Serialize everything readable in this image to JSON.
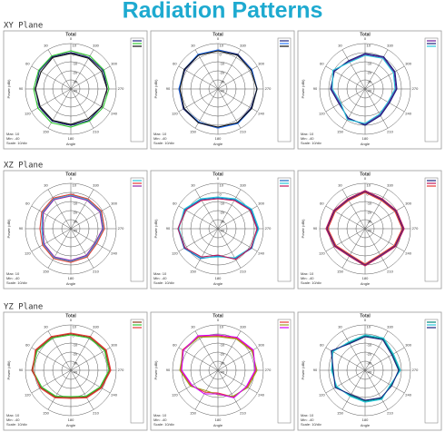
{
  "title": "Radiation Patterns",
  "sections": [
    "XY Plane",
    "XZ Plane",
    "YZ Plane"
  ],
  "chart_data": [
    {
      "type": "polar",
      "title": "Total",
      "r_label": "Power (dBi)",
      "x_label": "Angle",
      "notes": [
        "Max: 10",
        "Min: -40",
        "Scale: 10/div"
      ],
      "rlim": [
        -40,
        10
      ],
      "rticks": [
        -40,
        -30,
        -20,
        -10,
        0,
        10
      ],
      "x": [
        0,
        30,
        60,
        90,
        120,
        150,
        180,
        210,
        240,
        270,
        300,
        330
      ],
      "xticks": [
        0,
        30,
        60,
        90,
        120,
        150,
        180,
        210,
        240,
        270,
        300,
        330
      ],
      "series": [
        {
          "color": "#1a237e",
          "values": [
            0,
            1,
            0,
            -1,
            0,
            1,
            0,
            0,
            -1,
            0,
            1,
            0
          ]
        },
        {
          "color": "#33cc33",
          "values": [
            2,
            2,
            1,
            1,
            2,
            3,
            2,
            1,
            1,
            2,
            2,
            2
          ]
        },
        {
          "color": "#111111",
          "values": [
            -1,
            0,
            -2,
            -1,
            -1,
            0,
            -1,
            -2,
            -1,
            0,
            -1,
            -1
          ]
        }
      ]
    },
    {
      "type": "polar",
      "title": "Total",
      "r_label": "Power (dBi)",
      "x_label": "Angle",
      "notes": [
        "Max: 10",
        "Min: -40",
        "Scale: 10/div"
      ],
      "rlim": [
        -40,
        10
      ],
      "rticks": [
        -40,
        -30,
        -20,
        -10,
        0,
        10
      ],
      "x": [
        0,
        30,
        60,
        90,
        120,
        150,
        180,
        210,
        240,
        270,
        300,
        330
      ],
      "xticks": [
        0,
        30,
        60,
        90,
        120,
        150,
        180,
        210,
        240,
        270,
        300,
        330
      ],
      "series": [
        {
          "color": "#1a237e",
          "values": [
            3,
            3,
            2,
            3,
            4,
            3,
            3,
            3,
            2,
            3,
            3,
            4
          ]
        },
        {
          "color": "#2979ff",
          "values": [
            3,
            4,
            3,
            3,
            3,
            2,
            3,
            4,
            3,
            3,
            3,
            3
          ]
        },
        {
          "color": "#111111",
          "values": [
            2,
            3,
            3,
            2,
            3,
            3,
            2,
            3,
            3,
            3,
            2,
            3
          ]
        }
      ]
    },
    {
      "type": "polar",
      "title": "Total",
      "r_label": "Power (dBi)",
      "x_label": "Angle",
      "notes": [
        "Max: 10",
        "Min: -40",
        "Scale: 10/div"
      ],
      "rlim": [
        -40,
        10
      ],
      "rticks": [
        -40,
        -30,
        -20,
        -10,
        0,
        10
      ],
      "x": [
        0,
        30,
        60,
        90,
        120,
        150,
        180,
        210,
        240,
        270,
        300,
        330
      ],
      "xticks": [
        0,
        30,
        60,
        90,
        120,
        150,
        180,
        210,
        240,
        270,
        300,
        330
      ],
      "series": [
        {
          "color": "#6a1b9a",
          "values": [
            -2,
            -5,
            0,
            -3,
            -8,
            -2,
            -1,
            -7,
            -10,
            -6,
            -3,
            0
          ]
        },
        {
          "color": "#1a237e",
          "values": [
            -1,
            -4,
            -1,
            -2,
            -7,
            -3,
            0,
            -6,
            -9,
            -5,
            -2,
            1
          ]
        },
        {
          "color": "#26c6da",
          "values": [
            -3,
            -6,
            1,
            -4,
            -9,
            -1,
            -2,
            -8,
            -11,
            -7,
            -4,
            -1
          ]
        }
      ]
    },
    {
      "type": "polar",
      "title": "Total",
      "r_label": "Power (dBi)",
      "x_label": "Angle",
      "notes": [
        "Max: 10",
        "Min: -40",
        "Scale: 10/div"
      ],
      "rlim": [
        -40,
        10
      ],
      "rticks": [
        -40,
        -30,
        -20,
        -10,
        0,
        10
      ],
      "x": [
        0,
        30,
        60,
        90,
        120,
        150,
        180,
        210,
        240,
        270,
        300,
        330
      ],
      "xticks": [
        0,
        30,
        60,
        90,
        120,
        150,
        180,
        210,
        240,
        270,
        300,
        330
      ],
      "series": [
        {
          "color": "#26c6da",
          "values": [
            -3,
            -2,
            -4,
            -8,
            -5,
            -3,
            -4,
            -5,
            -8,
            -4,
            -2,
            -3
          ]
        },
        {
          "color": "#e53935",
          "values": [
            -2,
            -1,
            -3,
            -6,
            -4,
            -2,
            -3,
            -4,
            -7,
            -3,
            -1,
            -2
          ]
        },
        {
          "color": "#8e24aa",
          "values": [
            -4,
            -3,
            -5,
            -9,
            -6,
            -4,
            -5,
            -6,
            -9,
            -5,
            -3,
            -4
          ]
        }
      ]
    },
    {
      "type": "polar",
      "title": "Total",
      "r_label": "Power (dBi)",
      "x_label": "Angle",
      "notes": [
        "Max: 10",
        "Min: -40",
        "Scale: 10/div"
      ],
      "rlim": [
        -40,
        10
      ],
      "rticks": [
        -40,
        -30,
        -20,
        -10,
        0,
        10
      ],
      "x": [
        0,
        30,
        60,
        90,
        120,
        150,
        180,
        210,
        240,
        270,
        300,
        330
      ],
      "xticks": [
        0,
        30,
        60,
        90,
        120,
        150,
        180,
        210,
        240,
        270,
        300,
        330
      ],
      "series": [
        {
          "color": "#1565c0",
          "values": [
            -6,
            -3,
            2,
            4,
            3,
            -2,
            -10,
            -2,
            3,
            4,
            2,
            -3
          ]
        },
        {
          "color": "#26c6da",
          "values": [
            -5,
            -2,
            3,
            3,
            2,
            -3,
            -9,
            -3,
            2,
            5,
            3,
            -2
          ]
        },
        {
          "color": "#c2185b",
          "values": [
            -7,
            -4,
            1,
            4,
            2,
            -4,
            -11,
            -1,
            2,
            3,
            1,
            -4
          ]
        }
      ]
    },
    {
      "type": "polar",
      "title": "Total",
      "r_label": "Power (dBi)",
      "x_label": "Angle",
      "notes": [
        "Max: 10",
        "Min: -40",
        "Scale: 10/div"
      ],
      "rlim": [
        -40,
        10
      ],
      "rticks": [
        -40,
        -30,
        -20,
        -10,
        0,
        10
      ],
      "x": [
        0,
        30,
        60,
        90,
        120,
        150,
        180,
        210,
        240,
        270,
        300,
        330
      ],
      "xticks": [
        0,
        30,
        60,
        90,
        120,
        150,
        180,
        210,
        240,
        270,
        300,
        330
      ],
      "series": [
        {
          "color": "#1a237e",
          "values": [
            1,
            -3,
            -1,
            2,
            -2,
            -6,
            0,
            -6,
            -2,
            2,
            -1,
            -3
          ]
        },
        {
          "color": "#c2185b",
          "values": [
            2,
            -2,
            0,
            3,
            -1,
            -5,
            1,
            -5,
            -1,
            3,
            0,
            -2
          ]
        },
        {
          "color": "#e53935",
          "values": [
            0,
            -4,
            -2,
            1,
            -3,
            -7,
            -1,
            -7,
            -3,
            1,
            -2,
            -4
          ]
        }
      ]
    },
    {
      "type": "polar",
      "title": "Total",
      "r_label": "Power (dBi)",
      "x_label": "Angle",
      "notes": [
        "Max: 10",
        "Min: -40",
        "Scale: 10/div"
      ],
      "rlim": [
        -40,
        10
      ],
      "rticks": [
        -40,
        -30,
        -20,
        -10,
        0,
        10
      ],
      "x": [
        0,
        30,
        60,
        90,
        120,
        150,
        180,
        210,
        240,
        270,
        300,
        330
      ],
      "xticks": [
        0,
        30,
        60,
        90,
        120,
        150,
        180,
        210,
        240,
        270,
        300,
        330
      ],
      "series": [
        {
          "color": "#8d3b1a",
          "values": [
            0,
            2,
            4,
            3,
            -2,
            -6,
            -10,
            -6,
            -2,
            3,
            4,
            2
          ]
        },
        {
          "color": "#33cc33",
          "values": [
            -1,
            1,
            3,
            2,
            -3,
            -7,
            -11,
            -7,
            -3,
            2,
            3,
            1
          ]
        },
        {
          "color": "#e53935",
          "values": [
            1,
            3,
            5,
            2,
            -1,
            -5,
            -9,
            -5,
            -1,
            4,
            5,
            3
          ]
        }
      ]
    },
    {
      "type": "polar",
      "title": "Total",
      "r_label": "Power (dBi)",
      "x_label": "Angle",
      "notes": [
        "Max: 10",
        "Min: -40",
        "Scale: 10/div"
      ],
      "rlim": [
        -40,
        10
      ],
      "rticks": [
        -40,
        -30,
        -20,
        -10,
        0,
        10
      ],
      "x": [
        0,
        30,
        60,
        90,
        120,
        150,
        180,
        210,
        240,
        270,
        300,
        330
      ],
      "xticks": [
        0,
        30,
        60,
        90,
        120,
        150,
        180,
        210,
        240,
        270,
        300,
        330
      ],
      "series": [
        {
          "color": "#e53935",
          "values": [
            -2,
            3,
            5,
            1,
            -6,
            -12,
            -15,
            -6,
            -3,
            2,
            4,
            1
          ]
        },
        {
          "color": "#9e9d24",
          "values": [
            -3,
            2,
            4,
            2,
            -5,
            -14,
            -13,
            -7,
            -2,
            3,
            3,
            0
          ]
        },
        {
          "color": "#d500f9",
          "values": [
            -1,
            4,
            4,
            0,
            -7,
            -10,
            -14,
            -5,
            -4,
            1,
            5,
            2
          ]
        }
      ]
    },
    {
      "type": "polar",
      "title": "Total",
      "r_label": "Power (dBi)",
      "x_label": "Angle",
      "notes": [
        "Max: 10",
        "Min: -40",
        "Scale: 10/div"
      ],
      "rlim": [
        -40,
        10
      ],
      "rticks": [
        -40,
        -30,
        -20,
        -10,
        0,
        10
      ],
      "x": [
        0,
        30,
        60,
        90,
        120,
        150,
        180,
        210,
        240,
        270,
        300,
        330
      ],
      "xticks": [
        0,
        30,
        60,
        90,
        120,
        150,
        180,
        210,
        240,
        270,
        300,
        330
      ],
      "series": [
        {
          "color": "#00897b",
          "values": [
            -2,
            -5,
            2,
            -4,
            -3,
            -8,
            -6,
            -4,
            -7,
            -2,
            -5,
            0
          ]
        },
        {
          "color": "#26c6da",
          "values": [
            -1,
            -4,
            1,
            -3,
            -4,
            -7,
            -5,
            -3,
            -8,
            -1,
            -4,
            1
          ]
        },
        {
          "color": "#1a237e",
          "values": [
            -3,
            -6,
            3,
            -5,
            -2,
            -9,
            -7,
            -5,
            -6,
            -3,
            -6,
            -1
          ]
        }
      ]
    }
  ]
}
